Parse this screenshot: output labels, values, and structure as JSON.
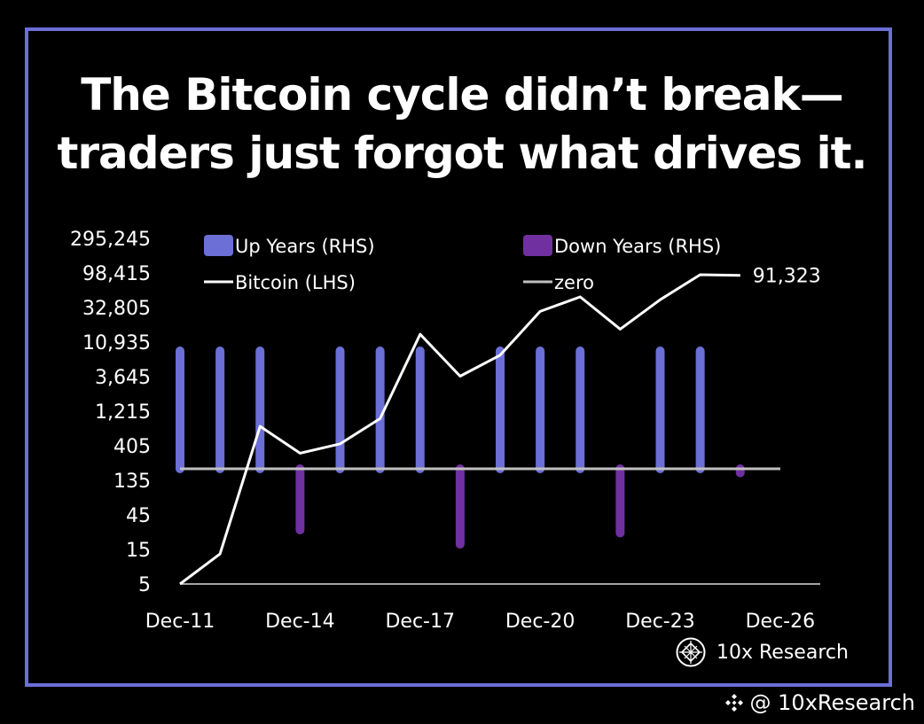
{
  "headline": {
    "line1": "The Bitcoin cycle didn’t break—",
    "line2": "traders just forgot what drives it."
  },
  "brand": {
    "name": "10x Research",
    "icon": "10x-research-logo-icon"
  },
  "watermark": {
    "text": "@ 10xResearch",
    "icon": "binance-square-icon"
  },
  "colors": {
    "frame": "#6b6fd6",
    "up": "#6b6fd6",
    "down": "#7030a0",
    "bitcoin": "#ffffff",
    "zero": "#bfbfbf",
    "background": "#000000"
  },
  "chart_data": {
    "type": "bar+line",
    "legend": [
      {
        "label": "Up Years (RHS)",
        "kind": "bar",
        "color": "#6b6fd6"
      },
      {
        "label": "Down Years (RHS)",
        "kind": "bar",
        "color": "#7030a0"
      },
      {
        "label": "Bitcoin (LHS)",
        "kind": "line",
        "color": "#ffffff"
      },
      {
        "label": "zero",
        "kind": "line",
        "color": "#bfbfbf"
      }
    ],
    "legend_placement": "top",
    "y_left": {
      "scale": "log3",
      "ticks": [
        "295,245",
        "98,415",
        "32,805",
        "10,935",
        "3,645",
        "1,215",
        "405",
        "135",
        "45",
        "15",
        "5"
      ],
      "tick_values": [
        295245,
        98415,
        32805,
        10935,
        3645,
        1215,
        405,
        135,
        45,
        15,
        5
      ],
      "range": [
        5,
        295245
      ]
    },
    "x": {
      "ticks": [
        "Dec-11",
        "Dec-14",
        "Dec-17",
        "Dec-20",
        "Dec-23",
        "Dec-26"
      ],
      "tick_years": [
        2011,
        2014,
        2017,
        2020,
        2023,
        2026
      ],
      "range": [
        2011,
        2027
      ]
    },
    "series_bitcoin": {
      "name": "Bitcoin (LHS)",
      "points": [
        {
          "x": 2011,
          "y": 5
        },
        {
          "x": 2012,
          "y": 13
        },
        {
          "x": 2013,
          "y": 750
        },
        {
          "x": 2014,
          "y": 320
        },
        {
          "x": 2015,
          "y": 430
        },
        {
          "x": 2016,
          "y": 960
        },
        {
          "x": 2017,
          "y": 14000
        },
        {
          "x": 2018,
          "y": 3700
        },
        {
          "x": 2019,
          "y": 7200
        },
        {
          "x": 2020,
          "y": 29000
        },
        {
          "x": 2021,
          "y": 46000
        },
        {
          "x": 2022,
          "y": 16500
        },
        {
          "x": 2023,
          "y": 42000
        },
        {
          "x": 2024,
          "y": 93000
        },
        {
          "x": 2025,
          "y": 91323
        }
      ],
      "end_label": "91,323"
    },
    "series_years": {
      "unit": "relative (RHS, unlabelled)",
      "bars": [
        {
          "x": 2011,
          "type": "up",
          "value": 1.0
        },
        {
          "x": 2012,
          "type": "up",
          "value": 1.0
        },
        {
          "x": 2013,
          "type": "up",
          "value": 1.0
        },
        {
          "x": 2014,
          "type": "down",
          "value": -0.6
        },
        {
          "x": 2015,
          "type": "up",
          "value": 1.0
        },
        {
          "x": 2016,
          "type": "up",
          "value": 1.0
        },
        {
          "x": 2017,
          "type": "up",
          "value": 1.0
        },
        {
          "x": 2018,
          "type": "down",
          "value": -0.74
        },
        {
          "x": 2019,
          "type": "up",
          "value": 1.0
        },
        {
          "x": 2020,
          "type": "up",
          "value": 1.0
        },
        {
          "x": 2021,
          "type": "up",
          "value": 1.0
        },
        {
          "x": 2022,
          "type": "down",
          "value": -0.63
        },
        {
          "x": 2023,
          "type": "up",
          "value": 1.0
        },
        {
          "x": 2024,
          "type": "up",
          "value": 1.0
        },
        {
          "x": 2025,
          "type": "down",
          "value": -0.04
        }
      ]
    }
  }
}
